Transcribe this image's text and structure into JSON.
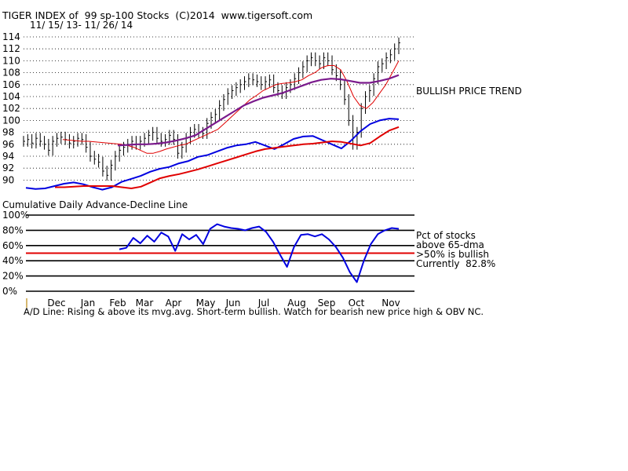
{
  "header": {
    "title": "TIGER INDEX of  99 sp-100 Stocks  (C)2014  www.tigersoft.com",
    "subtitle": "11/ 15/ 13- 11/ 26/ 14"
  },
  "annotations": {
    "trend": "BULLISH PRICE TREND",
    "ad_line_label": "Cumulative Daily Advance-Decline Line",
    "pct_line1": "Pct of stocks",
    "pct_line2": "above 65-dma",
    "pct_line3": ">50% is bullish",
    "pct_line4": "Currently  82.8%",
    "bottom_note": "A/D Line: Rising & above its mvg.avg. Short-term bullish. Watch for bearish new price high & OBV NC."
  },
  "colors": {
    "price_bars": "#000000",
    "ma_short": "#e00000",
    "ma_long": "#7a1a8c",
    "ad_line": "#0000e0",
    "ad_ma": "#e00000",
    "pct_line": "#0000e0",
    "threshold": "#e00000"
  },
  "chart_data": [
    {
      "type": "line",
      "title": "TIGER INDEX of  99 sp-100 Stocks  (C)2014  www.tigersoft.com",
      "ylim": [
        89,
        115
      ],
      "yticks": [
        "114",
        "112",
        "110",
        "108",
        "106",
        "104",
        "102",
        "100",
        "98",
        "96",
        "94",
        "92",
        "90"
      ],
      "grid": true,
      "series": [
        {
          "role": "price (daily high-low bars)",
          "values": [
            96.5,
            96.8,
            96.2,
            97.0,
            96.5,
            96.0,
            95.0,
            96.5,
            97.0,
            97.2,
            96.8,
            96.2,
            96.5,
            97.0,
            96.8,
            95.5,
            94.0,
            93.5,
            93.0,
            91.5,
            90.8,
            92.5,
            94.0,
            95.0,
            95.5,
            96.0,
            96.5,
            96.0,
            96.5,
            97.0,
            97.5,
            98.0,
            97.0,
            96.5,
            96.8,
            97.5,
            96.8,
            94.5,
            95.5,
            97.0,
            98.0,
            98.5,
            98.0,
            97.8,
            99.5,
            100.5,
            101.0,
            102.5,
            103.5,
            104.5,
            105.0,
            105.5,
            106.0,
            106.5,
            107.0,
            106.8,
            106.5,
            106.0,
            106.5,
            106.8,
            105.5,
            105.0,
            104.5,
            105.5,
            106.0,
            107.0,
            108.0,
            109.0,
            110.0,
            110.5,
            110.0,
            109.5,
            110.5,
            110.0,
            108.5,
            107.5,
            106.0,
            103.5,
            100.0,
            96.0,
            98.0,
            102.0,
            104.0,
            105.0,
            107.0,
            109.0,
            109.5,
            110.5,
            111.0,
            112.0,
            113.0
          ]
        },
        {
          "role": "short moving average (red)",
          "values": [
            96.8,
            96.7,
            96.6,
            96.5,
            96.5,
            96.4,
            96.3,
            96.2,
            96.1,
            96.0,
            95.8,
            95.5,
            95.0,
            94.5,
            94.5,
            94.8,
            95.2,
            95.5,
            95.8,
            96.0,
            96.5,
            97.0,
            97.5,
            98.0,
            98.5,
            99.5,
            100.5,
            101.5,
            102.5,
            103.5,
            104.2,
            105.0,
            105.5,
            106.0,
            106.2,
            106.3,
            106.5,
            106.8,
            107.5,
            108.0,
            108.8,
            109.2,
            109.2,
            108.5,
            106.5,
            104.0,
            102.5,
            102.0,
            103.0,
            104.5,
            106.0,
            108.0,
            110.0
          ]
        },
        {
          "role": "long moving average (purple)",
          "values": [
            95.8,
            95.9,
            96.0,
            96.0,
            96.1,
            96.3,
            96.6,
            97.0,
            97.5,
            98.5,
            99.5,
            100.5,
            101.5,
            102.5,
            103.2,
            103.8,
            104.2,
            104.6,
            105.2,
            105.8,
            106.4,
            106.8,
            107.0,
            106.9,
            106.6,
            106.3,
            106.3,
            106.6,
            107.0,
            107.6
          ]
        }
      ]
    },
    {
      "type": "line",
      "title": "",
      "series": [
        {
          "role": "A/D line (blue)",
          "values": [
            88.7,
            88.5,
            88.6,
            89.0,
            89.4,
            89.6,
            89.3,
            88.8,
            88.4,
            88.8,
            89.7,
            90.2,
            90.7,
            91.4,
            91.9,
            92.2,
            92.8,
            93.2,
            93.9,
            94.2,
            94.8,
            95.4,
            95.8,
            96.0,
            96.4,
            95.8,
            95.2,
            96.0,
            96.9,
            97.3,
            97.4,
            96.7,
            96.0,
            95.3,
            96.6,
            98.2,
            99.4,
            100.0,
            100.3,
            100.2
          ]
        },
        {
          "role": "A/D line moving average (red)",
          "values": [
            88.8,
            88.8,
            88.9,
            89.0,
            89.0,
            89.0,
            89.0,
            88.8,
            88.6,
            88.9,
            89.6,
            90.3,
            90.7,
            91.0,
            91.4,
            91.8,
            92.3,
            92.8,
            93.3,
            93.8,
            94.3,
            94.8,
            95.2,
            95.4,
            95.6,
            95.8,
            96.0,
            96.1,
            96.3,
            96.5,
            96.4,
            96.1,
            95.8,
            96.2,
            97.3,
            98.3,
            98.9
          ]
        }
      ]
    },
    {
      "type": "line",
      "title": "",
      "ylim": [
        0,
        100
      ],
      "yticks": [
        "100%",
        "80%",
        "60%",
        "40%",
        "20%",
        "0%"
      ],
      "xticks": [
        "Dec",
        "Jan",
        "Feb",
        "Mar",
        "Apr",
        "May",
        "Jun",
        "Jul",
        "Aug",
        "Sep",
        "Oct",
        "Nov"
      ],
      "threshold": 50,
      "grid": true,
      "series": [
        {
          "role": "pct of stocks above 65-dma (blue)",
          "values": [
            55,
            57,
            70,
            63,
            73,
            65,
            77,
            72,
            53,
            75,
            68,
            74,
            62,
            82,
            88,
            85,
            83,
            82,
            80,
            83,
            85,
            78,
            65,
            48,
            32,
            58,
            74,
            75,
            72,
            75,
            68,
            58,
            44,
            25,
            12,
            40,
            62,
            75,
            80,
            83,
            82
          ]
        }
      ]
    }
  ]
}
